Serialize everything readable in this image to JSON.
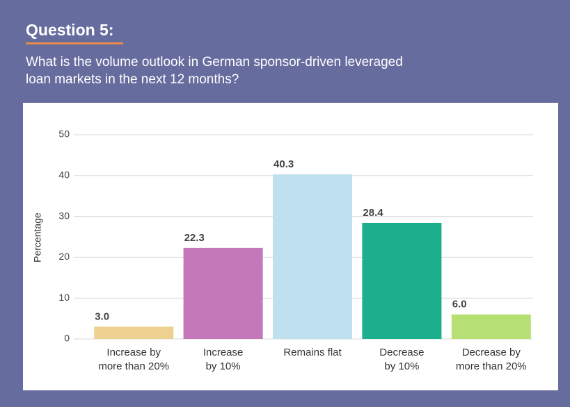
{
  "chart_data": {
    "type": "bar",
    "title": "Question 5:",
    "subtitle": [
      "What is the volume outlook in German sponsor-driven leveraged",
      "loan markets in the next 12 months?"
    ],
    "y_label": "Percentage",
    "categories": [
      [
        "Increase by",
        "more than 20%"
      ],
      [
        "Increase",
        "by 10%"
      ],
      [
        "Remains flat"
      ],
      [
        "Decrease",
        "by 10%"
      ],
      [
        "Decrease by",
        "more than 20%"
      ]
    ],
    "values": [
      3,
      22.3,
      40.3,
      28.4,
      6
    ],
    "value_labels": [
      "3.0",
      "22.3",
      "40.3",
      "28.4",
      "6.0"
    ],
    "colors": [
      "#ecd191",
      "#c477b9",
      "#bfe0ee",
      "#1baf8b",
      "#b6df74"
    ],
    "ylim": [
      0,
      50
    ],
    "yticks": [
      0,
      10,
      20,
      30,
      40,
      50
    ],
    "grid": true
  }
}
